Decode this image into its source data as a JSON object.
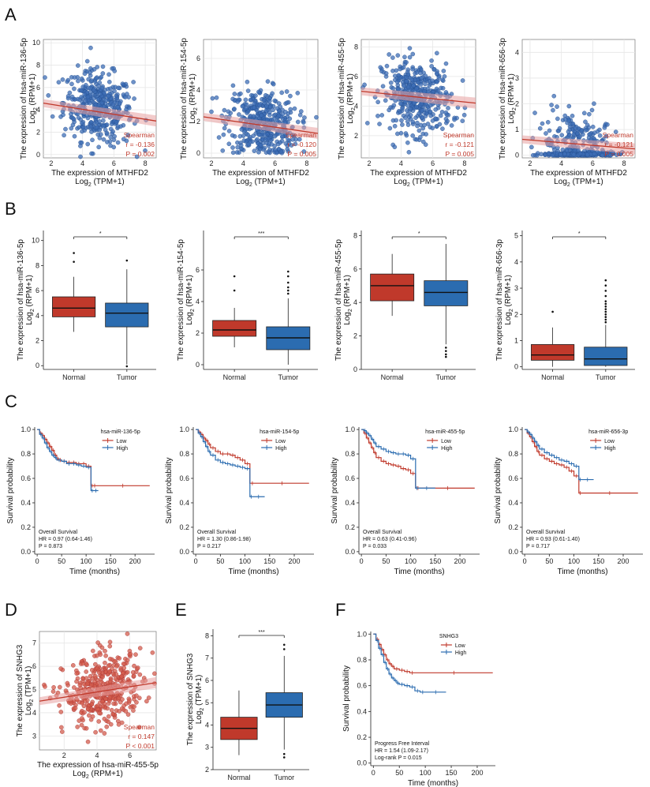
{
  "panel_letters": [
    "A",
    "B",
    "C",
    "D",
    "E",
    "F"
  ],
  "colors": {
    "red": "#c0392b",
    "blue": "#2b6cb0",
    "grid": "#e6e6e6",
    "point_blue": "#3e6eb5",
    "point_red": "#d35c4c"
  },
  "chart_data": [
    {
      "panel": "A",
      "type": "scatter",
      "title": "",
      "xlabel": "The expression of MTHFD2",
      "xlabel2": "Log2 (TPM+1)",
      "ylabel": "The expression of hsa-miR-136-5p",
      "ylabel2": "Log2 (RPM+1)",
      "xticks": [
        2,
        4,
        6,
        8
      ],
      "yticks": [
        0,
        2,
        4,
        6,
        8,
        10
      ],
      "xlim": [
        1.5,
        8.7
      ],
      "ylim": [
        -0.3,
        10.3
      ],
      "n_points": 420,
      "center": [
        5,
        4.2
      ],
      "spread": [
        1.1,
        1.6
      ],
      "fit": [
        [
          1.5,
          4.6
        ],
        [
          8.7,
          3.0
        ]
      ],
      "stats": [
        "Spearman",
        "r = -0.136",
        "P = 0.002"
      ]
    },
    {
      "panel": "A",
      "type": "scatter",
      "title": "",
      "xlabel": "The expression of MTHFD2",
      "xlabel2": "Log2 (TPM+1)",
      "ylabel": "The expression of hsa-miR-154-5p",
      "ylabel2": "Log2 (RPM+1)",
      "xticks": [
        2,
        4,
        6,
        8
      ],
      "yticks": [
        0,
        2,
        4,
        6
      ],
      "xlim": [
        1.5,
        8.7
      ],
      "ylim": [
        -0.3,
        7.2
      ],
      "n_points": 420,
      "center": [
        5.2,
        1.9
      ],
      "spread": [
        1.1,
        1.1
      ],
      "fit": [
        [
          1.5,
          2.3
        ],
        [
          8.7,
          1.25
        ]
      ],
      "stats": [
        "Spearman",
        "r = -0.120",
        "P = 0.005"
      ]
    },
    {
      "panel": "A",
      "type": "scatter",
      "title": "",
      "xlabel": "The expression of MTHFD2",
      "xlabel2": "Log2 (TPM+1)",
      "ylabel": "The expression of hsa-miR-455-5p",
      "ylabel2": "Log2 (RPM+1)",
      "xticks": [
        2,
        4,
        6,
        8
      ],
      "yticks": [
        2,
        4,
        6,
        8
      ],
      "xlim": [
        1.5,
        8.7
      ],
      "ylim": [
        0.5,
        8.5
      ],
      "n_points": 420,
      "center": [
        5,
        4.6
      ],
      "spread": [
        1.1,
        1.2
      ],
      "fit": [
        [
          1.5,
          5.0
        ],
        [
          8.7,
          4.2
        ]
      ],
      "stats": [
        "Spearman",
        "r = -0.121",
        "P = 0.005"
      ]
    },
    {
      "panel": "A",
      "type": "scatter",
      "title": "",
      "xlabel": "The expression of MTHFD2",
      "xlabel2": "Log2 (TPM+1)",
      "ylabel": "The expression of hsa-miR-656-3p",
      "ylabel2": "Log2 (RPM+1)",
      "xticks": [
        2,
        4,
        6,
        8
      ],
      "yticks": [
        0,
        1,
        2,
        3,
        4
      ],
      "xlim": [
        1.5,
        8.7
      ],
      "ylim": [
        -0.1,
        4.5
      ],
      "n_points": 420,
      "center": [
        5,
        0.5
      ],
      "spread": [
        1.1,
        0.55
      ],
      "fit": [
        [
          1.5,
          0.62
        ],
        [
          8.7,
          0.25
        ]
      ],
      "stats": [
        "Spearman",
        "r = -0.121",
        "P = 0.005"
      ]
    },
    {
      "panel": "B",
      "type": "box",
      "categories": [
        "Normal",
        "Tumor"
      ],
      "ylabel": "The expression of hsa-miR-136-5p",
      "ylabel2": "Log2 (RPM+1)",
      "yticks": [
        0,
        2,
        4,
        6,
        8,
        10
      ],
      "ylim": [
        -0.3,
        10.8
      ],
      "boxes": [
        {
          "q1": 3.9,
          "median": 4.6,
          "q3": 5.5,
          "lo": 2.7,
          "hi": 7.1,
          "outliers": [
            8.3,
            9.0
          ]
        },
        {
          "q1": 3.1,
          "median": 4.2,
          "q3": 5.0,
          "lo": 0.1,
          "hi": 7.7,
          "outliers": [
            8.4,
            -0.05
          ]
        }
      ],
      "sig": "*"
    },
    {
      "panel": "B",
      "type": "box",
      "categories": [
        "Normal",
        "Tumor"
      ],
      "ylabel": "The expression of hsa-miR-154-5p",
      "ylabel2": "Log2 (RPM+1)",
      "yticks": [
        0,
        2,
        4,
        6
      ],
      "ylim": [
        -0.3,
        8.5
      ],
      "boxes": [
        {
          "q1": 1.8,
          "median": 2.2,
          "q3": 2.8,
          "lo": 1.1,
          "hi": 3.6,
          "outliers": [
            4.7,
            5.6
          ]
        },
        {
          "q1": 0.95,
          "median": 1.7,
          "q3": 2.4,
          "lo": 0.0,
          "hi": 4.2,
          "outliers": [
            4.5,
            4.7,
            4.9,
            5.2,
            5.6,
            5.9
          ]
        }
      ],
      "sig": "***"
    },
    {
      "panel": "B",
      "type": "box",
      "categories": [
        "Normal",
        "Tumor"
      ],
      "ylabel": "The expression of hsa-miR-455-5p",
      "ylabel2": "Log2 (RPM+1)",
      "yticks": [
        0,
        2,
        4,
        6,
        8
      ],
      "ylim": [
        0,
        8.3
      ],
      "boxes": [
        {
          "q1": 4.1,
          "median": 5.0,
          "q3": 5.7,
          "lo": 3.2,
          "hi": 6.9,
          "outliers": []
        },
        {
          "q1": 3.8,
          "median": 4.6,
          "q3": 5.3,
          "lo": 1.5,
          "hi": 7.5,
          "outliers": [
            1.3,
            1.1,
            0.9,
            0.75
          ]
        }
      ],
      "sig": "*"
    },
    {
      "panel": "B",
      "type": "box",
      "categories": [
        "Normal",
        "Tumor"
      ],
      "ylabel": "The expression of hsa-miR-656-3p",
      "ylabel2": "Log2 (RPM+1)",
      "yticks": [
        0,
        1,
        2,
        3,
        4,
        5
      ],
      "ylim": [
        -0.1,
        5.2
      ],
      "boxes": [
        {
          "q1": 0.25,
          "median": 0.45,
          "q3": 0.85,
          "lo": 0.0,
          "hi": 1.5,
          "outliers": [
            2.1
          ]
        },
        {
          "q1": 0.05,
          "median": 0.3,
          "q3": 0.75,
          "lo": 0.0,
          "hi": 1.6,
          "outliers": [
            1.7,
            1.8,
            1.9,
            2.0,
            2.1,
            2.2,
            2.3,
            2.4,
            2.5,
            2.7,
            2.9,
            3.1,
            3.3
          ]
        }
      ],
      "sig": "*"
    },
    {
      "panel": "C",
      "type": "line",
      "legend_title": "hsa-miR-136-5p",
      "legend": [
        "Low",
        "High"
      ],
      "xlabel": "Time (months)",
      "ylabel": "Survival probability",
      "xticks": [
        0,
        50,
        100,
        150,
        200
      ],
      "yticks": [
        0.0,
        0.2,
        0.4,
        0.6,
        0.8,
        1.0
      ],
      "xlim": [
        -5,
        240
      ],
      "ylim": [
        -0.02,
        1.02
      ],
      "series": [
        {
          "name": "Low",
          "x": [
            0,
            5,
            10,
            15,
            20,
            25,
            30,
            35,
            40,
            45,
            50,
            60,
            70,
            80,
            90,
            100,
            110,
            115,
            120,
            230
          ],
          "y": [
            1,
            0.97,
            0.95,
            0.92,
            0.89,
            0.86,
            0.83,
            0.79,
            0.76,
            0.75,
            0.74,
            0.73,
            0.73,
            0.72,
            0.72,
            0.7,
            0.54,
            0.54,
            0.54,
            0.54
          ]
        },
        {
          "name": "High",
          "x": [
            0,
            5,
            10,
            15,
            20,
            25,
            30,
            35,
            40,
            50,
            60,
            70,
            80,
            90,
            100,
            110,
            115,
            125
          ],
          "y": [
            1,
            0.96,
            0.93,
            0.89,
            0.85,
            0.82,
            0.79,
            0.77,
            0.75,
            0.74,
            0.72,
            0.72,
            0.71,
            0.7,
            0.69,
            0.5,
            0.5,
            0.5
          ]
        }
      ],
      "stats": [
        "Overall Survival",
        "HR = 0.97 (0.64-1.46)",
        "P = 0.873"
      ]
    },
    {
      "panel": "C",
      "type": "line",
      "legend_title": "hsa-miR-154-5p",
      "legend": [
        "Low",
        "High"
      ],
      "xlabel": "Time (months)",
      "ylabel": "Survival probability",
      "xticks": [
        0,
        50,
        100,
        150,
        200
      ],
      "yticks": [
        0.0,
        0.2,
        0.4,
        0.6,
        0.8,
        1.0
      ],
      "xlim": [
        -5,
        240
      ],
      "ylim": [
        -0.02,
        1.02
      ],
      "series": [
        {
          "name": "Low",
          "x": [
            0,
            5,
            10,
            15,
            20,
            25,
            30,
            40,
            50,
            60,
            70,
            80,
            90,
            100,
            110,
            120,
            230
          ],
          "y": [
            1,
            0.98,
            0.96,
            0.93,
            0.91,
            0.88,
            0.85,
            0.82,
            0.8,
            0.8,
            0.79,
            0.77,
            0.75,
            0.72,
            0.56,
            0.56,
            0.56
          ]
        },
        {
          "name": "High",
          "x": [
            0,
            5,
            10,
            15,
            20,
            25,
            30,
            40,
            50,
            60,
            70,
            80,
            90,
            100,
            110,
            115,
            140
          ],
          "y": [
            1,
            0.97,
            0.94,
            0.9,
            0.86,
            0.82,
            0.79,
            0.75,
            0.73,
            0.72,
            0.71,
            0.7,
            0.69,
            0.68,
            0.45,
            0.45,
            0.45
          ]
        }
      ],
      "stats": [
        "Overall Survival",
        "HR = 1.30 (0.86-1.98)",
        "P = 0.217"
      ]
    },
    {
      "panel": "C",
      "type": "line",
      "legend_title": "hsa-miR-455-5p",
      "legend": [
        "Low",
        "High"
      ],
      "xlabel": "Time (months)",
      "ylabel": "Survival probability",
      "xticks": [
        0,
        50,
        100,
        150,
        200
      ],
      "yticks": [
        0.0,
        0.2,
        0.4,
        0.6,
        0.8,
        1.0
      ],
      "xlim": [
        -5,
        240
      ],
      "ylim": [
        -0.02,
        1.02
      ],
      "series": [
        {
          "name": "Low",
          "x": [
            0,
            5,
            10,
            15,
            20,
            25,
            30,
            40,
            50,
            60,
            70,
            80,
            90,
            100,
            110,
            120,
            230
          ],
          "y": [
            1,
            0.97,
            0.93,
            0.89,
            0.85,
            0.81,
            0.77,
            0.74,
            0.72,
            0.71,
            0.7,
            0.68,
            0.67,
            0.64,
            0.52,
            0.52,
            0.52
          ]
        },
        {
          "name": "High",
          "x": [
            0,
            5,
            10,
            15,
            20,
            25,
            30,
            40,
            50,
            60,
            70,
            80,
            90,
            100,
            110,
            115,
            150
          ],
          "y": [
            1,
            0.99,
            0.97,
            0.95,
            0.92,
            0.89,
            0.86,
            0.84,
            0.82,
            0.81,
            0.8,
            0.8,
            0.79,
            0.76,
            0.52,
            0.52,
            0.52
          ]
        }
      ],
      "stats": [
        "Overall Survival",
        "HR = 0.63 (0.41-0.96)",
        "P = 0.033"
      ]
    },
    {
      "panel": "C",
      "type": "line",
      "legend_title": "hsa-miR-656-3p",
      "legend": [
        "Low",
        "High"
      ],
      "xlabel": "Time (months)",
      "ylabel": "Survival probability",
      "xticks": [
        0,
        50,
        100,
        150,
        200
      ],
      "yticks": [
        0.0,
        0.2,
        0.4,
        0.6,
        0.8,
        1.0
      ],
      "xlim": [
        -5,
        240
      ],
      "ylim": [
        -0.02,
        1.02
      ],
      "series": [
        {
          "name": "Low",
          "x": [
            0,
            5,
            10,
            15,
            20,
            25,
            30,
            40,
            50,
            60,
            70,
            80,
            90,
            100,
            110,
            115,
            230
          ],
          "y": [
            1,
            0.97,
            0.94,
            0.9,
            0.86,
            0.82,
            0.79,
            0.76,
            0.74,
            0.72,
            0.71,
            0.69,
            0.66,
            0.62,
            0.48,
            0.48,
            0.48
          ]
        },
        {
          "name": "High",
          "x": [
            0,
            5,
            10,
            15,
            20,
            25,
            30,
            40,
            50,
            60,
            70,
            80,
            90,
            100,
            110,
            115,
            140
          ],
          "y": [
            1,
            0.98,
            0.96,
            0.93,
            0.9,
            0.87,
            0.84,
            0.81,
            0.79,
            0.77,
            0.75,
            0.74,
            0.72,
            0.7,
            0.59,
            0.59,
            0.59
          ]
        }
      ],
      "stats": [
        "Overall Survival",
        "HR = 0.93 (0.61-1.40)",
        "P = 0.717"
      ]
    },
    {
      "panel": "D",
      "type": "scatter",
      "xlabel": "The expression of hsa-miR-455-5p",
      "xlabel2": "Log2 (RPM+1)",
      "ylabel": "The expression of SNHG3",
      "ylabel2": "Log2 (TPM+1)",
      "xticks": [
        2,
        4,
        6
      ],
      "yticks": [
        3,
        4,
        5,
        6,
        7
      ],
      "xlim": [
        0.5,
        7.6
      ],
      "ylim": [
        2.4,
        7.5
      ],
      "n_points": 420,
      "center": [
        4.4,
        4.95
      ],
      "spread": [
        1.2,
        0.75
      ],
      "fit": [
        [
          0.5,
          4.5
        ],
        [
          7.6,
          5.3
        ]
      ],
      "stats": [
        "Spearman",
        "r = 0.147",
        "P < 0.001"
      ]
    },
    {
      "panel": "E",
      "type": "box",
      "categories": [
        "Normal",
        "Tumor"
      ],
      "ylabel": "The expression of SNHG3",
      "ylabel2": "Log2 (TPM+1)",
      "yticks": [
        2,
        3,
        4,
        5,
        6,
        7,
        8
      ],
      "ylim": [
        2,
        8.3
      ],
      "boxes": [
        {
          "q1": 3.35,
          "median": 3.85,
          "q3": 4.35,
          "lo": 2.65,
          "hi": 5.55,
          "outliers": []
        },
        {
          "q1": 4.35,
          "median": 4.9,
          "q3": 5.45,
          "lo": 2.9,
          "hi": 7.1,
          "outliers": [
            7.4,
            7.6,
            2.7,
            2.55
          ]
        }
      ],
      "sig": "***"
    },
    {
      "panel": "F",
      "type": "line",
      "legend_title": "SNHG3",
      "legend": [
        "Low",
        "High"
      ],
      "xlabel": "Time (months)",
      "ylabel": "Survival probability",
      "xticks": [
        0,
        50,
        100,
        150,
        200
      ],
      "yticks": [
        0.0,
        0.2,
        0.4,
        0.6,
        0.8,
        1.0
      ],
      "xlim": [
        -5,
        235
      ],
      "ylim": [
        -0.02,
        1.02
      ],
      "series": [
        {
          "name": "Low",
          "x": [
            0,
            5,
            10,
            15,
            20,
            25,
            30,
            35,
            40,
            50,
            60,
            70,
            80,
            230
          ],
          "y": [
            1,
            0.96,
            0.92,
            0.88,
            0.84,
            0.8,
            0.77,
            0.75,
            0.73,
            0.72,
            0.71,
            0.7,
            0.7,
            0.7
          ]
        },
        {
          "name": "High",
          "x": [
            0,
            5,
            10,
            15,
            20,
            25,
            30,
            35,
            40,
            45,
            50,
            60,
            70,
            80,
            90,
            100,
            140
          ],
          "y": [
            1,
            0.95,
            0.89,
            0.84,
            0.78,
            0.73,
            0.69,
            0.66,
            0.64,
            0.62,
            0.61,
            0.6,
            0.59,
            0.56,
            0.55,
            0.55,
            0.55
          ]
        }
      ],
      "stats": [
        "Progress Free Interval",
        "HR = 1.54 (1.09-2.17)",
        "Log-rank P = 0.015"
      ]
    }
  ]
}
